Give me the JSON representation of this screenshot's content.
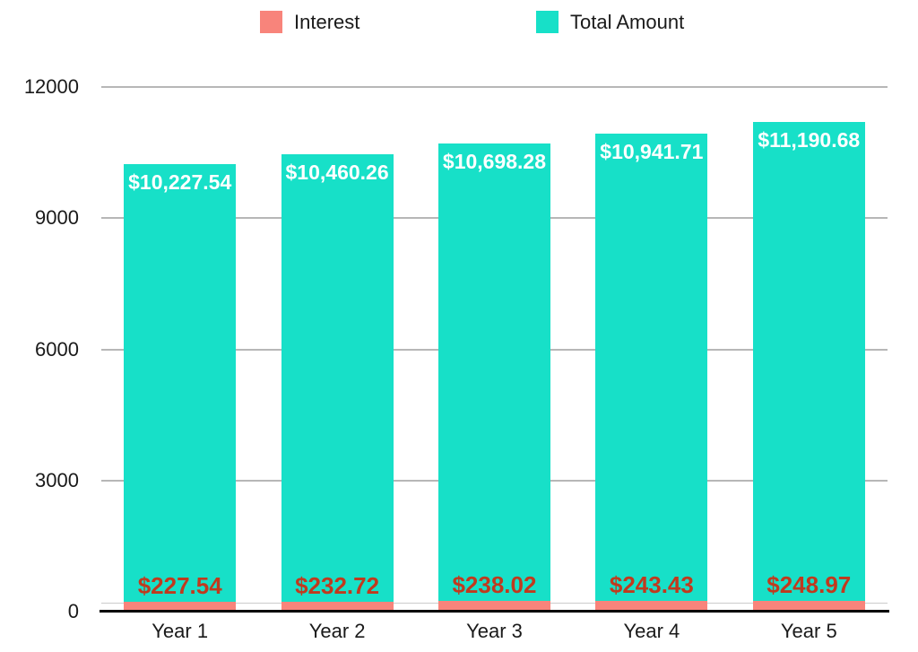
{
  "legend": {
    "items": [
      {
        "label": "Interest",
        "color": "#F8847B"
      },
      {
        "label": "Total Amount",
        "color": "#17E0C8"
      }
    ]
  },
  "colors": {
    "interest_bar": "#F8847B",
    "total_bar": "#17E0C8",
    "interest_label_text": "#C03A1E",
    "total_label_text": "#FFFFFF",
    "gridline": "#B7B7B7",
    "faint_line": "#CBCBCB",
    "axis_line": "#000000",
    "axis_text": "#1A1A1A"
  },
  "chart_data": {
    "type": "bar",
    "title": "",
    "categories": [
      "Year 1",
      "Year 2",
      "Year 3",
      "Year 4",
      "Year 5"
    ],
    "series": [
      {
        "name": "Interest",
        "values": [
          227.54,
          232.72,
          238.02,
          243.43,
          248.97
        ],
        "data_labels": [
          "$227.54",
          "$232.72",
          "$238.02",
          "$243.43",
          "$248.97"
        ]
      },
      {
        "name": "Total Amount",
        "values": [
          10227.54,
          10460.26,
          10698.28,
          10941.71,
          11190.68
        ],
        "data_labels": [
          "$10,227.54",
          "$10,460.26",
          "$10,698.28",
          "$10,941.71",
          "$11,190.68"
        ]
      }
    ],
    "xlabel": "",
    "ylabel": "",
    "ylim": [
      0,
      12000
    ],
    "y_ticks": [
      0,
      3000,
      6000,
      9000,
      12000
    ],
    "grid": true,
    "legend_position": "top",
    "bar_layout": "overlaid"
  }
}
